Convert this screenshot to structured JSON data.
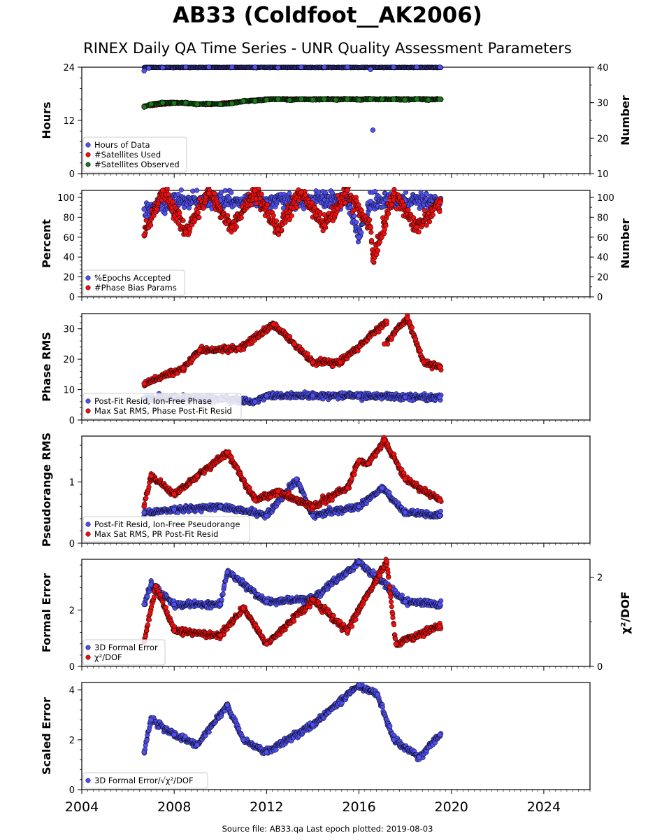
{
  "figure": {
    "title": "AB33 (Coldfoot__AK2006)",
    "subtitle": "RINEX Daily QA Time Series - UNR Quality Assessment Parameters",
    "footer": "Source file: AB33.qa Last epoch plotted: 2019-08-03"
  },
  "colors": {
    "blue": "#5050f0",
    "red": "#ee1111",
    "green": "#1a7a1a",
    "marker_edge": "#000000",
    "axis": "#000000"
  },
  "chart_data": [
    {
      "type": "scatter",
      "panel": "hours",
      "ylabel": "Hours",
      "ylabel_right": "Number",
      "xlim": [
        2004,
        2026
      ],
      "ylim": [
        0,
        24
      ],
      "ylim_right": [
        10,
        40
      ],
      "yticks": [
        0,
        12,
        24
      ],
      "yticks_right": [
        10,
        20,
        30,
        40
      ],
      "legend": "lower-left",
      "series": [
        {
          "name": "Hours of Data",
          "color": "blue",
          "axis": "left",
          "x": [
            2006.7,
            2006.9,
            2007.5,
            2008.5,
            2009.5,
            2010.5,
            2011.5,
            2012.5,
            2013.5,
            2014.5,
            2015.5,
            2016.5,
            2016.6,
            2017.5,
            2018.5,
            2019.5
          ],
          "y": [
            23.2,
            23.8,
            23.9,
            24,
            24,
            24,
            24,
            23.9,
            24,
            24,
            24,
            23.5,
            9.8,
            24,
            24,
            24
          ]
        },
        {
          "name": "#Satellites Used",
          "color": "red",
          "axis": "right",
          "x": [
            2006.7,
            2008,
            2009.5,
            2010.5,
            2012,
            2014,
            2016,
            2018,
            2019.5
          ],
          "y": [
            29,
            30,
            29.5,
            30,
            31,
            31,
            31,
            31,
            31
          ]
        },
        {
          "name": "#Satellites Observed",
          "color": "green",
          "axis": "right",
          "x": [
            2006.7,
            2007,
            2007.5,
            2008,
            2008.5,
            2009,
            2009.5,
            2010,
            2010.5,
            2011,
            2011.5,
            2012,
            2012.5,
            2013,
            2013.5,
            2014,
            2014.5,
            2015,
            2015.5,
            2016,
            2016.5,
            2017,
            2017.5,
            2018,
            2018.5,
            2019,
            2019.5
          ],
          "y": [
            28.8,
            29.6,
            30,
            29.9,
            30,
            29.5,
            29.8,
            29.5,
            29.8,
            30.5,
            30.5,
            30.8,
            31,
            30.7,
            31,
            30.8,
            31,
            30.8,
            31,
            30.8,
            31,
            30.9,
            31,
            30.8,
            31,
            30.8,
            31
          ]
        }
      ]
    },
    {
      "type": "scatter",
      "panel": "percent",
      "ylabel": "Percent",
      "ylabel_right": "Number",
      "xlim": [
        2004,
        2026
      ],
      "ylim": [
        0,
        107
      ],
      "ylim_right": [
        0,
        107
      ],
      "yticks": [
        0,
        20,
        40,
        60,
        80,
        100
      ],
      "yticks_right": [
        0,
        20,
        40,
        60,
        80,
        100
      ],
      "legend": "lower-left",
      "series": [
        {
          "name": "%Epochs Accepted",
          "color": "blue",
          "axis": "left",
          "x": [
            2006.7,
            2008,
            2010,
            2012,
            2014,
            2015.5,
            2016,
            2016.5,
            2018,
            2019.5
          ],
          "y": [
            88,
            96,
            97,
            96,
            97,
            97,
            60,
            96,
            97,
            96
          ]
        },
        {
          "name": "#Phase Bias Params",
          "color": "red",
          "axis": "right",
          "x": [
            2006.7,
            2007.5,
            2008.5,
            2009.5,
            2010.5,
            2011.5,
            2012.5,
            2013.5,
            2014.5,
            2015.5,
            2016.5,
            2016.6,
            2017.5,
            2018.5,
            2019.5
          ],
          "y": [
            62,
            107,
            65,
            104,
            70,
            107,
            68,
            105,
            72,
            107,
            70,
            36,
            104,
            70,
            95
          ]
        }
      ]
    },
    {
      "type": "scatter",
      "panel": "phase_rms",
      "ylabel": "Phase RMS",
      "xlim": [
        2004,
        2026
      ],
      "ylim": [
        0,
        35
      ],
      "yticks": [
        0,
        10,
        20,
        30
      ],
      "legend": "lower-left",
      "series": [
        {
          "name": "Post-Fit Resid, Ion-Free Phase",
          "color": "blue",
          "x": [
            2006.7,
            2008,
            2010,
            2011.5,
            2012,
            2014,
            2016,
            2018,
            2019.5
          ],
          "y": [
            7,
            7.5,
            7,
            6,
            8,
            8,
            8,
            7.5,
            7.5
          ]
        },
        {
          "name": "Max Sat RMS, Phase Post-Fit Resid",
          "color": "red",
          "x": [
            2006.7,
            2008.4,
            2009.1,
            2010.8,
            2012.3,
            2013.2,
            2014,
            2015.2,
            2017.2,
            2017.1,
            2018.1,
            2018.8,
            2019.5
          ],
          "y": [
            12,
            17,
            23,
            23.5,
            31.5,
            25,
            19,
            19,
            32.5,
            25,
            33.5,
            19,
            17.5
          ]
        }
      ]
    },
    {
      "type": "scatter",
      "panel": "pseudorange_rms",
      "ylabel": "Pseudorange RMS",
      "xlim": [
        2004,
        2026
      ],
      "ylim": [
        0,
        1.75
      ],
      "yticks": [
        0,
        1
      ],
      "legend": "lower-left",
      "series": [
        {
          "name": "Post-Fit Resid, Ion-Free Pseudorange",
          "color": "blue",
          "x": [
            2006.7,
            2008,
            2010,
            2012,
            2013.3,
            2014,
            2016,
            2017,
            2018,
            2019.5
          ],
          "y": [
            0.5,
            0.55,
            0.6,
            0.45,
            1.05,
            0.45,
            0.6,
            0.9,
            0.5,
            0.45
          ]
        },
        {
          "name": "Max Sat RMS, PR Post-Fit Resid",
          "color": "red",
          "x": [
            2006.7,
            2007,
            2008,
            2009,
            2010.3,
            2011.5,
            2012.5,
            2014,
            2015.5,
            2016,
            2016.4,
            2017.1,
            2018,
            2019.5
          ],
          "y": [
            0.6,
            1.1,
            0.8,
            1.1,
            1.48,
            0.7,
            0.85,
            0.6,
            0.9,
            1.35,
            1.3,
            1.68,
            1.05,
            0.7
          ]
        }
      ]
    },
    {
      "type": "scatter",
      "panel": "formal_error",
      "ylabel": "Formal Error",
      "ylabel_right": "χ²/DOF",
      "xlim": [
        2004,
        2026
      ],
      "ylim": [
        0,
        3.8
      ],
      "ylim_right": [
        0,
        2.4
      ],
      "yticks": [
        0,
        2
      ],
      "yticks_right": [
        0,
        2
      ],
      "legend": "lower-left",
      "series": [
        {
          "name": "3D Formal Error",
          "color": "blue",
          "axis": "left",
          "x": [
            2006.7,
            2007,
            2008,
            2010,
            2010.3,
            2012,
            2014,
            2016,
            2018,
            2019.5
          ],
          "y": [
            2.2,
            2.9,
            2.2,
            2.2,
            3.35,
            2.3,
            2.4,
            3.7,
            2.3,
            2.2
          ]
        },
        {
          "name": "χ²/DOF",
          "color": "red",
          "axis": "right",
          "x": [
            2006.7,
            2007.2,
            2008,
            2010,
            2011,
            2012,
            2014,
            2015.5,
            2017.2,
            2017.6,
            2019.5
          ],
          "y": [
            0.55,
            1.8,
            0.8,
            0.7,
            1.3,
            0.5,
            1.5,
            0.8,
            2.35,
            0.5,
            0.9
          ]
        }
      ]
    },
    {
      "type": "scatter",
      "panel": "scaled_error",
      "ylabel": "Scaled Error",
      "xlim": [
        2004,
        2026
      ],
      "ylim": [
        0,
        4.3
      ],
      "yticks": [
        0,
        2,
        4
      ],
      "legend": "lower-left",
      "series": [
        {
          "name": "3D Formal Error/√χ²/DOF",
          "color": "blue",
          "x": [
            2006.7,
            2007,
            2008,
            2009,
            2010.3,
            2011,
            2012,
            2014,
            2016,
            2016.8,
            2017.5,
            2018.6,
            2019.5
          ],
          "y": [
            1.5,
            2.8,
            2.2,
            1.8,
            3.4,
            2.0,
            1.5,
            2.6,
            4.2,
            3.8,
            2.0,
            1.3,
            2.2
          ]
        }
      ]
    }
  ],
  "x_axis": {
    "ticks": [
      2004,
      2008,
      2012,
      2016,
      2020,
      2024
    ],
    "tick_labels": [
      "2004",
      "2008",
      "2012",
      "2016",
      "2020",
      "2024"
    ]
  }
}
